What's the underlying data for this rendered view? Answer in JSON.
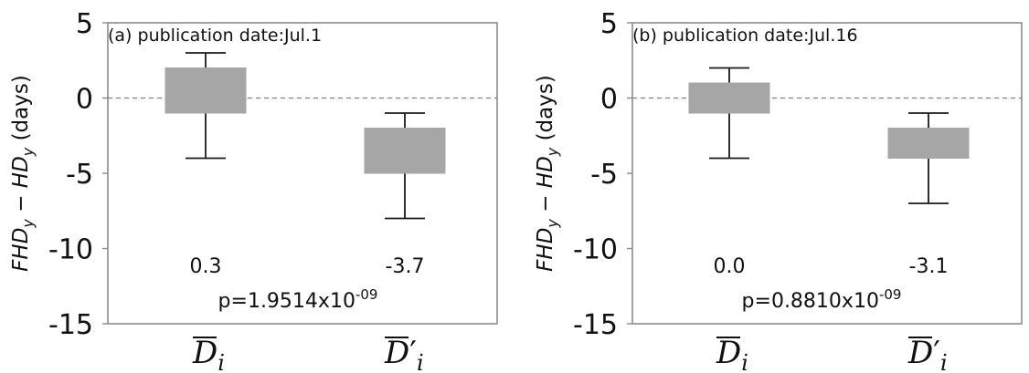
{
  "chart_data": [
    {
      "type": "box",
      "title": "(a) publication date:Jul.1",
      "ylabel_main": "FHD",
      "ylabel_sub1": "y",
      "ylabel_mid": " − HD",
      "ylabel_sub2": "y",
      "ylabel_unit": " (days)",
      "ylim": [
        -15,
        5
      ],
      "yticks": [
        "5",
        "0",
        "-5",
        "-10",
        "-15"
      ],
      "ytick_values": [
        5,
        0,
        -5,
        -10,
        -15
      ],
      "categories": [
        {
          "base": "D",
          "prime": "",
          "sub": "i"
        },
        {
          "base": "D",
          "prime": "′",
          "sub": "i"
        }
      ],
      "boxes": [
        {
          "whisker_low": -4,
          "q1": -1,
          "q3": 2,
          "whisker_high": 3
        },
        {
          "whisker_low": -8,
          "q1": -5,
          "q3": -2,
          "whisker_high": -1
        }
      ],
      "mean_labels": [
        "0.3",
        "-3.7"
      ],
      "p_text": "p=1.9514x10",
      "p_exp": "-09",
      "zero_line": true,
      "colors": {
        "box": "#a6a6a6",
        "whisker": "#1a1a1a",
        "zero_line": "#808080"
      }
    },
    {
      "type": "box",
      "title": "(b) publication date:Jul.16",
      "ylabel_main": "FHD",
      "ylabel_sub1": "y",
      "ylabel_mid": " − HD",
      "ylabel_sub2": "y",
      "ylabel_unit": " (days)",
      "ylim": [
        -15,
        5
      ],
      "yticks": [
        "5",
        "0",
        "-5",
        "-10",
        "-15"
      ],
      "ytick_values": [
        5,
        0,
        -5,
        -10,
        -15
      ],
      "categories": [
        {
          "base": "D",
          "prime": "",
          "sub": "i"
        },
        {
          "base": "D",
          "prime": "′",
          "sub": "i"
        }
      ],
      "boxes": [
        {
          "whisker_low": -4,
          "q1": -1,
          "q3": 1,
          "whisker_high": 2
        },
        {
          "whisker_low": -7,
          "q1": -4,
          "q3": -2,
          "whisker_high": -1
        }
      ],
      "mean_labels": [
        "0.0",
        "-3.1"
      ],
      "p_text": "p=0.8810x10",
      "p_exp": "-09",
      "zero_line": true,
      "colors": {
        "box": "#a6a6a6",
        "whisker": "#1a1a1a",
        "zero_line": "#808080"
      }
    }
  ]
}
